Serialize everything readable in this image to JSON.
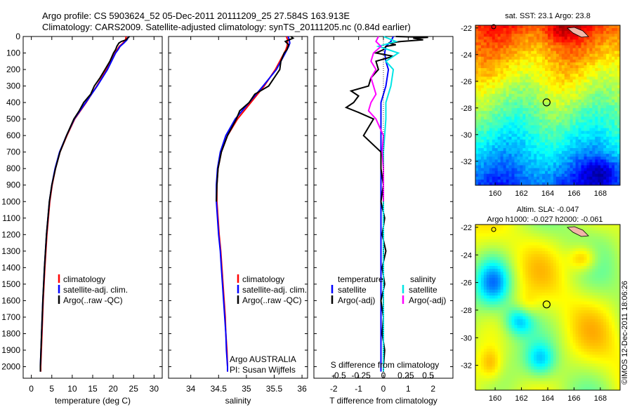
{
  "header": {
    "line1": "Argo profile: CS 5903624_52 05-Dec-2011 20111209_25 27.584S 163.913E",
    "line2": "Climatology: CARS2009. Satellite-adjusted climatology: synTS_20111205.nc (0.84d earlier)"
  },
  "colors": {
    "climatology": "#ff0000",
    "satellite": "#0000ff",
    "argo": "#000000",
    "sal_satellite": "#00e5e5",
    "sal_argo": "#ff00ff"
  },
  "chart_data": [
    {
      "type": "line",
      "id": "temperature",
      "xlabel": "temperature (deg C)",
      "ylabel": "",
      "xlim": [
        -2,
        32
      ],
      "ylim": [
        2070,
        0
      ],
      "xticks": [
        0,
        5,
        10,
        15,
        20,
        25,
        30
      ],
      "yticks": [
        0,
        100,
        200,
        300,
        400,
        500,
        600,
        700,
        800,
        900,
        1000,
        1100,
        1200,
        1300,
        1400,
        1500,
        1600,
        1700,
        1800,
        1900,
        2000
      ],
      "legend": [
        "climatology",
        "satellite-adj. clim.",
        "Argo(..raw -QC)"
      ],
      "series": [
        {
          "name": "climatology",
          "color": "#ff0000",
          "depth": [
            0,
            20,
            40,
            60,
            80,
            100,
            150,
            200,
            300,
            400,
            500,
            600,
            700,
            800,
            900,
            1000,
            1200,
            1400,
            1600,
            1800,
            2000,
            2030
          ],
          "values": [
            23.2,
            23.0,
            22.4,
            21.5,
            21.0,
            20.5,
            19.5,
            18.4,
            16.0,
            13.4,
            10.6,
            8.7,
            7.0,
            5.9,
            5.1,
            4.5,
            3.8,
            3.3,
            2.9,
            2.6,
            2.3,
            2.3
          ]
        },
        {
          "name": "satellite-adj. clim.",
          "color": "#0000ff",
          "depth": [
            0,
            20,
            40,
            60,
            80,
            100,
            150,
            200,
            300,
            400,
            500,
            600,
            700,
            800,
            900,
            1000,
            1200,
            1400,
            1600,
            1800,
            2000,
            2030
          ],
          "values": [
            23.8,
            23.4,
            22.6,
            21.7,
            21.2,
            20.6,
            19.6,
            18.6,
            16.1,
            13.3,
            10.5,
            8.6,
            6.9,
            5.8,
            5.0,
            4.4,
            3.7,
            3.2,
            2.8,
            2.5,
            2.2,
            2.2
          ]
        },
        {
          "name": "Argo(..raw -QC)",
          "color": "#000000",
          "depth": [
            0,
            10,
            20,
            30,
            40,
            60,
            80,
            100,
            150,
            200,
            250,
            300,
            350,
            400,
            450,
            500,
            600,
            700,
            800,
            900,
            1000,
            1200,
            1400,
            1600,
            1800,
            2000,
            2030
          ],
          "values": [
            24.0,
            23.5,
            23.2,
            22.0,
            21.4,
            20.9,
            20.6,
            20.1,
            19.2,
            18.0,
            16.8,
            15.4,
            14.5,
            12.8,
            11.7,
            10.4,
            8.6,
            7.0,
            5.9,
            5.0,
            4.4,
            3.7,
            3.2,
            2.8,
            2.5,
            2.2,
            2.2
          ]
        }
      ]
    },
    {
      "type": "line",
      "id": "salinity",
      "xlabel": "salinity",
      "ylabel": "",
      "xlim": [
        33.6,
        36.1
      ],
      "ylim": [
        2070,
        0
      ],
      "xticks": [
        34,
        34.5,
        35,
        35.5,
        36
      ],
      "legend": [
        "climatology",
        "satellite-adj. clim.",
        "Argo(..raw -QC)"
      ],
      "annotation": [
        "Argo AUSTRALIA",
        "PI: Susan Wijffels"
      ],
      "series": [
        {
          "name": "climatology",
          "color": "#ff0000",
          "depth": [
            0,
            20,
            40,
            60,
            80,
            100,
            150,
            200,
            300,
            400,
            500,
            600,
            700,
            800,
            900,
            1000,
            1100,
            1200,
            1300,
            1400,
            1500,
            1600,
            1700,
            1800,
            1900,
            2000,
            2030
          ],
          "values": [
            35.72,
            35.74,
            35.74,
            35.73,
            35.71,
            35.68,
            35.6,
            35.52,
            35.32,
            35.08,
            34.84,
            34.66,
            34.55,
            34.49,
            34.47,
            34.47,
            34.49,
            34.51,
            34.54,
            34.56,
            34.58,
            34.6,
            34.62,
            34.63,
            34.65,
            34.66,
            34.66
          ]
        },
        {
          "name": "satellite-adj. clim.",
          "color": "#0000ff",
          "depth": [
            0,
            20,
            40,
            60,
            80,
            100,
            150,
            200,
            300,
            400,
            500,
            600,
            700,
            800,
            900,
            1000,
            1100,
            1200,
            1300,
            1400,
            1500,
            1600,
            1700,
            1800,
            1900,
            2000,
            2030
          ],
          "values": [
            35.75,
            35.77,
            35.78,
            35.76,
            35.73,
            35.7,
            35.62,
            35.54,
            35.3,
            35.05,
            34.8,
            34.63,
            34.53,
            34.48,
            34.46,
            34.46,
            34.48,
            34.5,
            34.53,
            34.55,
            34.57,
            34.59,
            34.61,
            34.63,
            34.64,
            34.66,
            34.66
          ]
        },
        {
          "name": "Argo(..raw -QC)",
          "color": "#000000",
          "depth": [
            0,
            10,
            30,
            50,
            80,
            100,
            150,
            200,
            250,
            300,
            350,
            400,
            450,
            500,
            600,
            700,
            800,
            900,
            1000
          ],
          "values": [
            35.8,
            35.84,
            35.7,
            35.76,
            35.73,
            35.68,
            35.62,
            35.6,
            35.5,
            35.4,
            35.15,
            35.05,
            34.88,
            34.82,
            34.66,
            34.55,
            34.49,
            34.47,
            34.46
          ]
        }
      ]
    },
    {
      "type": "line",
      "id": "difference",
      "xlabel": "T difference from climatology",
      "xlabel_top": "S difference from climatology",
      "ylabel": "",
      "xlim": [
        -2.8,
        2.8
      ],
      "ylim": [
        2070,
        0
      ],
      "xticks": [
        -2,
        -1,
        0,
        1,
        2
      ],
      "xticks_salinity": [
        -0.5,
        -0.25,
        0,
        0.25,
        0.5
      ],
      "legend_left_title": "temperature",
      "legend_right_title": "salinity",
      "legend": [
        "satellite",
        "Argo(-adj)",
        "satellite",
        "Argo(-adj)"
      ],
      "series": [
        {
          "name": "satellite",
          "group": "temperature",
          "color": "#0000ff",
          "depth": [
            0,
            30,
            60,
            100,
            150,
            200,
            300,
            400,
            500,
            600,
            800,
            1000,
            1200,
            1400,
            1600,
            1800,
            2000,
            2030
          ],
          "values": [
            0.4,
            0.3,
            0.1,
            0.05,
            0.1,
            0.2,
            0.1,
            -0.1,
            -0.1,
            -0.1,
            -0.1,
            -0.1,
            -0.1,
            -0.1,
            -0.1,
            -0.1,
            -0.1,
            -0.1
          ]
        },
        {
          "name": "Argo(-adj)",
          "group": "temperature",
          "color": "#000000",
          "depth": [
            0,
            5,
            10,
            20,
            30,
            40,
            50,
            60,
            80,
            100,
            120,
            150,
            200,
            250,
            300,
            330,
            360,
            400,
            430,
            460,
            500,
            550,
            600,
            700,
            800,
            900,
            1000,
            1100,
            1200,
            1300,
            1400,
            1500,
            1600,
            1700,
            1800,
            1900,
            2000,
            2030
          ],
          "values": [
            0.5,
            1.8,
            1.2,
            1.6,
            0.7,
            0.2,
            0.5,
            0.1,
            0.0,
            -0.3,
            0.4,
            -0.3,
            -0.2,
            -0.5,
            -0.6,
            -1.3,
            -1.0,
            -1.2,
            -1.5,
            -1.0,
            -0.4,
            -0.6,
            -0.8,
            -0.1,
            -0.1,
            0.0,
            -0.1,
            0.05,
            -0.05,
            0.1,
            -0.05,
            0.05,
            -0.1,
            0.0,
            -0.05,
            0.05,
            0.0,
            0.0
          ]
        },
        {
          "name": "satellite",
          "group": "salinity",
          "color": "#00e5e5",
          "depth": [
            0,
            30,
            60,
            100,
            150,
            200,
            300,
            400,
            500,
            700,
            1000,
            1400,
            1800,
            2000,
            2030
          ],
          "values": [
            0.0,
            0.5,
            -0.2,
            0.6,
            0.1,
            0.4,
            0.3,
            0.1,
            0.1,
            0.0,
            0.0,
            0.0,
            0.0,
            0.0,
            0.0
          ]
        },
        {
          "name": "Argo(-adj)",
          "group": "salinity",
          "color": "#ff00ff",
          "depth": [
            0,
            30,
            60,
            100,
            150,
            200,
            250,
            300,
            350,
            400,
            450,
            500,
            600,
            700,
            800,
            900,
            1000
          ],
          "values": [
            -0.2,
            -0.3,
            -0.1,
            -0.4,
            -0.5,
            -0.3,
            -0.5,
            -0.4,
            -0.3,
            -0.5,
            -0.6,
            -0.3,
            0.0,
            -0.05,
            0.0,
            0.0,
            0.0
          ]
        }
      ]
    },
    {
      "type": "heatmap",
      "id": "sst_map",
      "title": "sat. SST: 23.1  Argo: 23.8",
      "xlim": [
        158.5,
        169.5
      ],
      "ylim": [
        -33.8,
        -21.8
      ],
      "xticks": [
        160,
        162,
        164,
        166,
        168
      ],
      "yticks": [
        -22,
        -24,
        -26,
        -28,
        -30,
        -32
      ],
      "profile_location": [
        163.913,
        -27.584
      ]
    },
    {
      "type": "heatmap",
      "id": "sla_map",
      "title_line1": "Altim. SLA: -0.047",
      "title_line2": "Argo h1000: -0.027  h2000: -0.061",
      "xlim": [
        158.5,
        169.5
      ],
      "ylim": [
        -33.8,
        -21.8
      ],
      "xticks": [
        160,
        162,
        164,
        166,
        168
      ],
      "yticks": [
        -22,
        -24,
        -26,
        -28,
        -30,
        -32
      ],
      "profile_location": [
        163.913,
        -27.584
      ]
    }
  ],
  "footer": {
    "stamp": "©IMOS 12-Dec-2011 18:06:26"
  }
}
